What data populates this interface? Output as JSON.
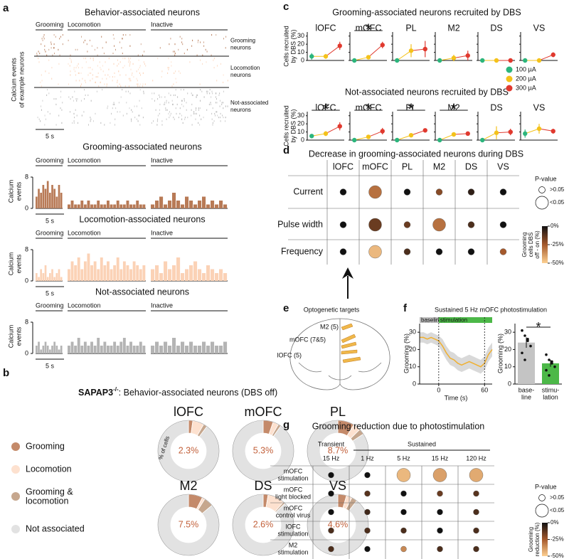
{
  "panel_a": {
    "letter": "a",
    "title": "Behavior-associated neurons",
    "conditions": [
      "Grooming",
      "Locomotion",
      "Inactive"
    ],
    "raster_ylabel": [
      "Calcium events",
      "of example neurons"
    ],
    "groups": [
      [
        "Grooming",
        "neurons"
      ],
      [
        "Locomotion",
        "neurons"
      ],
      [
        "Not-associated",
        "neurons"
      ]
    ],
    "scalebar": "5 s",
    "hist_ylabel": [
      "Calcium",
      "events"
    ],
    "ylim": [
      0,
      8
    ],
    "yticks": [
      0,
      8
    ],
    "histograms": [
      {
        "title": "Grooming-associated neurons",
        "color": "#b87a56",
        "values": [
          [
            3,
            5,
            4,
            6,
            5,
            7,
            4,
            6,
            5,
            3,
            6,
            4
          ],
          [
            1,
            2,
            1,
            1,
            2,
            1,
            2,
            1,
            1,
            2,
            1,
            1,
            2,
            1,
            1,
            2,
            1,
            1,
            2,
            1,
            1,
            2,
            1,
            1
          ],
          [
            1,
            2,
            3,
            1,
            2,
            4,
            2,
            1,
            3,
            2,
            1,
            2,
            3,
            1,
            2,
            1,
            2,
            1
          ]
        ]
      },
      {
        "title": "Locomotion-associated neurons",
        "color": "#fbd2b6",
        "values": [
          [
            2,
            1,
            3,
            2,
            4,
            1,
            2,
            3,
            1,
            2,
            3,
            1
          ],
          [
            3,
            5,
            4,
            6,
            3,
            5,
            7,
            4,
            5,
            3,
            6,
            4,
            5,
            3,
            4,
            6,
            3,
            5,
            4,
            3,
            5,
            4,
            3,
            4
          ],
          [
            3,
            4,
            2,
            5,
            3,
            4,
            6,
            2,
            3,
            4,
            5,
            3,
            2,
            4,
            3,
            2,
            3,
            2
          ]
        ]
      },
      {
        "title": "Not-associated neurons",
        "color": "#b4b4b4",
        "values": [
          [
            2,
            3,
            1,
            2,
            3,
            2,
            1,
            2,
            3,
            2,
            1,
            2
          ],
          [
            2,
            3,
            2,
            4,
            2,
            3,
            2,
            3,
            2,
            4,
            2,
            3,
            2,
            2,
            3,
            2,
            3,
            4,
            2,
            3,
            2,
            2,
            3,
            2
          ],
          [
            2,
            3,
            2,
            3,
            2,
            4,
            2,
            3,
            2,
            3,
            2,
            2,
            3,
            2,
            3,
            2,
            2,
            3
          ]
        ]
      }
    ]
  },
  "panel_b": {
    "letter": "b",
    "title_main": "SAPAP3",
    "title_sup": "-/-",
    "title_rest": ": Behavior-associated neurons (DBS off)",
    "ring_label": "% of cells",
    "legend": [
      {
        "name": [
          "Grooming"
        ],
        "color": "#c48a6a"
      },
      {
        "name": [
          "Locomotion"
        ],
        "color": "#fde1cf"
      },
      {
        "name": [
          "Grooming &",
          "locomotion"
        ],
        "color": "#c6a78e"
      },
      {
        "name": [
          "Not associated"
        ],
        "color": "#e2e2e2"
      }
    ],
    "donuts": [
      {
        "name": "lOFC",
        "values": [
          2.3,
          6,
          2,
          89.7
        ],
        "value_label": "2.3%"
      },
      {
        "name": "mOFC",
        "values": [
          5.3,
          3,
          1.5,
          90.2
        ],
        "value_label": "5.3%"
      },
      {
        "name": "PL",
        "values": [
          8.7,
          4,
          3,
          84.3
        ],
        "value_label": "8.7%"
      },
      {
        "name": "M2",
        "values": [
          7.5,
          1.5,
          5,
          86
        ],
        "value_label": "7.5%"
      },
      {
        "name": "DS",
        "values": [
          2.6,
          9,
          1,
          87.4
        ],
        "value_label": "2.6%"
      },
      {
        "name": "VS",
        "values": [
          4.6,
          3,
          3,
          89.4
        ],
        "value_label": "4.6%"
      }
    ]
  },
  "panel_c": {
    "letter": "c",
    "ylabel": [
      "Cells recruited",
      "by DBS (%)"
    ],
    "ylim": [
      0,
      35
    ],
    "yticks": [
      0,
      10,
      20,
      30
    ],
    "legend": [
      {
        "name": "100 µA",
        "color": "#2bb57c"
      },
      {
        "name": "200 µA",
        "color": "#f4c21a"
      },
      {
        "name": "300 µA",
        "color": "#e0392e"
      }
    ],
    "rows": [
      {
        "title": "Grooming-associated neurons recruited by DBS",
        "plots": [
          {
            "name": "lOFC",
            "values": [
              5,
              5,
              18
            ],
            "errors": [
              4,
              3,
              5
            ]
          },
          {
            "name": "mOFC",
            "values": [
              0,
              4,
              19
            ],
            "errors": [
              1,
              2,
              4
            ],
            "star": "*"
          },
          {
            "name": "PL",
            "values": [
              0,
              12,
              14
            ],
            "errors": [
              1,
              8,
              10
            ]
          },
          {
            "name": "M2",
            "values": [
              0,
              3,
              6
            ],
            "errors": [
              1,
              4,
              6
            ]
          },
          {
            "name": "DS",
            "values": [
              0,
              0,
              0
            ],
            "errors": [
              0,
              0,
              0
            ]
          },
          {
            "name": "VS",
            "values": [
              0,
              0,
              7
            ],
            "errors": [
              0,
              0,
              3
            ]
          }
        ]
      },
      {
        "title": "Not-associated neurons recruited by DBS",
        "plots": [
          {
            "name": "lOFC",
            "values": [
              5,
              8,
              17
            ],
            "errors": [
              2,
              3,
              5
            ],
            "star": "*"
          },
          {
            "name": "mOFC",
            "values": [
              0,
              4,
              11
            ],
            "errors": [
              1,
              2,
              4
            ],
            "star": "*"
          },
          {
            "name": "PL",
            "values": [
              0,
              6,
              12
            ],
            "errors": [
              1,
              2,
              2
            ],
            "star": "*"
          },
          {
            "name": "M2",
            "values": [
              0,
              7,
              8
            ],
            "errors": [
              1,
              2,
              2
            ],
            "star": "*"
          },
          {
            "name": "DS",
            "values": [
              0,
              9,
              10
            ],
            "errors": [
              0,
              8,
              4
            ]
          },
          {
            "name": "VS",
            "values": [
              8,
              14,
              11
            ],
            "errors": [
              5,
              6,
              3
            ]
          }
        ]
      }
    ]
  },
  "panel_d": {
    "letter": "d",
    "title": "Decrease in grooming-associated neurons during DBS",
    "columns": [
      "lOFC",
      "mOFC",
      "PL",
      "M2",
      "DS",
      "VS"
    ],
    "rows": [
      {
        "name": "Current",
        "values": [
          0,
          -30,
          0,
          -20,
          -5,
          0
        ],
        "significant": [
          false,
          true,
          false,
          false,
          false,
          false
        ]
      },
      {
        "name": "Pulse width",
        "values": [
          0,
          -15,
          -15,
          -30,
          -10,
          0
        ],
        "significant": [
          false,
          true,
          false,
          true,
          false,
          false
        ]
      },
      {
        "name": "Frequency",
        "values": [
          0,
          -45,
          -10,
          0,
          0,
          -25
        ],
        "significant": [
          false,
          true,
          false,
          false,
          false,
          false
        ]
      }
    ],
    "pvalue": {
      "title": "P-value",
      "labels": [
        ">0.05",
        "<0.05"
      ]
    },
    "colorbar": {
      "label": [
        "Grooming",
        "cells DBS",
        "off - on (%)"
      ],
      "clim": [
        -50,
        0
      ],
      "colormap": [
        "#111111",
        "#a5592c",
        "#fdd092"
      ],
      "ticks": [
        {
          "value": 0,
          "label": "0%"
        },
        {
          "value": -25,
          "label": "-25%"
        },
        {
          "value": -50,
          "label": "-50%"
        }
      ]
    }
  },
  "panel_e": {
    "letter": "e",
    "title": "Optogenetic targets",
    "labels": [
      "M2 (5)",
      "mOFC (7&5)",
      "lOFC (5)"
    ]
  },
  "panel_f": {
    "letter": "f",
    "title": "Sustained 5 Hz mOFC photostimulation",
    "line": {
      "x": [
        -25,
        -20,
        -15,
        -10,
        -5,
        0,
        5,
        10,
        15,
        20,
        25,
        30,
        35,
        40,
        45,
        50,
        55,
        60,
        65,
        70
      ],
      "values": [
        27,
        27,
        26,
        27,
        26,
        25,
        22,
        18,
        15,
        14,
        12,
        11,
        12,
        13,
        12,
        11,
        10,
        12,
        17,
        20
      ],
      "errors": [
        3,
        3,
        3,
        3,
        3,
        3,
        4,
        4,
        4,
        4,
        4,
        4,
        4,
        4,
        4,
        4,
        4,
        4,
        4,
        4
      ],
      "color": "#f0b030",
      "band_color": "#cfcfcf",
      "xlim": [
        -25,
        70
      ],
      "xticks": [
        0,
        60
      ],
      "ylim": [
        0,
        35
      ],
      "yticks": [
        0,
        10,
        20,
        30
      ],
      "xlabel": "Time (s)",
      "ylabel": "Grooming (%)",
      "phases": [
        {
          "name": "baseline",
          "start": -25,
          "end": 0,
          "color": "#bdbdbd"
        },
        {
          "name": "stimulation",
          "start": 0,
          "end": 70,
          "color": "#4cb848"
        }
      ]
    },
    "bars": {
      "categories": [
        [
          "base-",
          "line"
        ],
        [
          "stimu-",
          "lation"
        ]
      ],
      "values": [
        24,
        12
      ],
      "errors": [
        3,
        2
      ],
      "points": [
        [
          31,
          28,
          26,
          22,
          18,
          14,
          25
        ],
        [
          17,
          14,
          12,
          10,
          8,
          5,
          13
        ]
      ],
      "colors": [
        "#c4c4c4",
        "#4cb848"
      ],
      "ylim": [
        0,
        35
      ],
      "yticks": [
        0,
        10,
        20,
        30
      ],
      "ylabel": "Grooming (%)",
      "star": "*"
    }
  },
  "panel_g": {
    "letter": "g",
    "title": "Grooming reduction due to photostimulation",
    "groups": [
      {
        "label": "Transient",
        "columns": [
          "15 Hz"
        ]
      },
      {
        "label": "Sustained",
        "columns": [
          "1 Hz",
          "5 Hz",
          "15 Hz",
          "120 Hz"
        ]
      }
    ],
    "rows": [
      {
        "name": [
          "mOFC",
          "stimulation"
        ],
        "values": [
          0,
          0,
          -45,
          -40,
          -42
        ],
        "significant": [
          false,
          false,
          true,
          true,
          true
        ]
      },
      {
        "name": [
          "mOFC",
          "light blocked"
        ],
        "values": [
          0,
          -12,
          0,
          -15,
          -12
        ],
        "significant": [
          false,
          false,
          false,
          false,
          false
        ]
      },
      {
        "name": [
          "mOFC",
          "control virus"
        ],
        "values": [
          0,
          -8,
          0,
          0,
          -10
        ],
        "significant": [
          false,
          false,
          false,
          false,
          false
        ]
      },
      {
        "name": [
          "lOFC",
          "stimulation"
        ],
        "values": [
          -10,
          -10,
          -10,
          0,
          -10
        ],
        "significant": [
          false,
          false,
          false,
          false,
          false
        ]
      },
      {
        "name": [
          "M2",
          "stimulation"
        ],
        "values": [
          -10,
          0,
          -35,
          -10,
          -10
        ],
        "significant": [
          false,
          false,
          false,
          false,
          false
        ]
      }
    ],
    "pvalue": {
      "title": "P-value",
      "labels": [
        ">0.05",
        "<0.05"
      ]
    },
    "colorbar": {
      "label": [
        "Grooming",
        "reduction (%)"
      ],
      "clim": [
        -50,
        0
      ],
      "colormap": [
        "#111111",
        "#a5592c",
        "#fdd092"
      ],
      "ticks": [
        {
          "value": 0,
          "label": "0%"
        },
        {
          "value": -25,
          "label": "-25%"
        },
        {
          "value": -50,
          "label": "-50%"
        }
      ]
    }
  }
}
